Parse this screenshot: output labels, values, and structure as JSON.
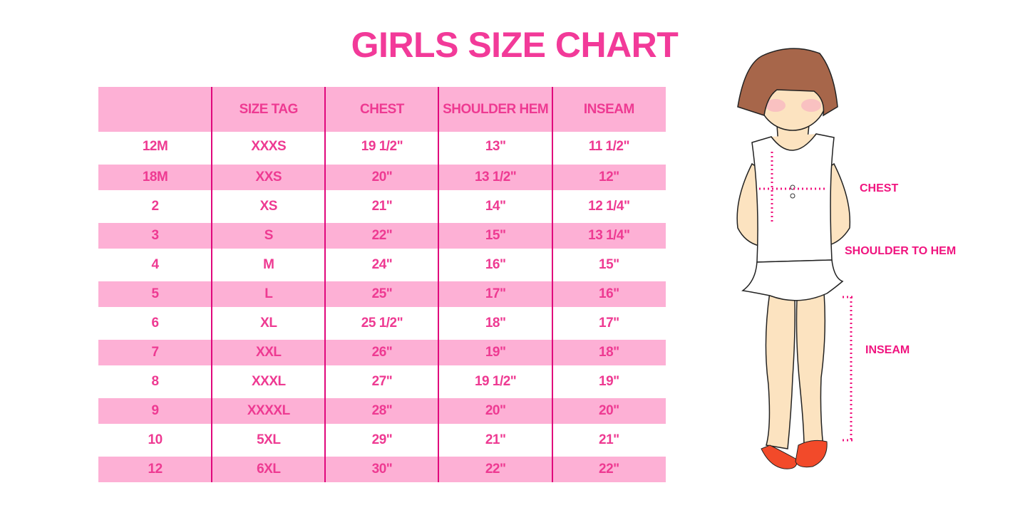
{
  "title": "GIRLS SIZE CHART",
  "table": {
    "headers": [
      "",
      "SIZE TAG",
      "CHEST",
      "SHOULDER HEM",
      "INSEAM"
    ],
    "rows": [
      [
        "12M",
        "XXXS",
        "19 1/2\"",
        "13\"",
        "11 1/2\""
      ],
      [
        "18M",
        "XXS",
        "20\"",
        "13 1/2\"",
        "12\""
      ],
      [
        "2",
        "XS",
        "21\"",
        "14\"",
        "12 1/4\""
      ],
      [
        "3",
        "S",
        "22\"",
        "15\"",
        "13 1/4\""
      ],
      [
        "4",
        "M",
        "24\"",
        "16\"",
        "15\""
      ],
      [
        "5",
        "L",
        "25\"",
        "17\"",
        "16\""
      ],
      [
        "6",
        "XL",
        "25 1/2\"",
        "18\"",
        "17\""
      ],
      [
        "7",
        "XXL",
        "26\"",
        "19\"",
        "18\""
      ],
      [
        "8",
        "XXXL",
        "27\"",
        "19 1/2\"",
        "19\""
      ],
      [
        "9",
        "XXXXL",
        "28\"",
        "20\"",
        "20\""
      ],
      [
        "10",
        "5XL",
        "29\"",
        "21\"",
        "21\""
      ],
      [
        "12",
        "6XL",
        "30\"",
        "22\"",
        "22\""
      ]
    ]
  },
  "illustration": {
    "labels": {
      "chest": "CHEST",
      "shoulder_to_hem": "SHOULDER TO HEM",
      "inseam": "INSEAM"
    }
  },
  "colors": {
    "accent": "#f23a99",
    "stripe": "#fdb0d5",
    "divider": "#e0087c"
  }
}
